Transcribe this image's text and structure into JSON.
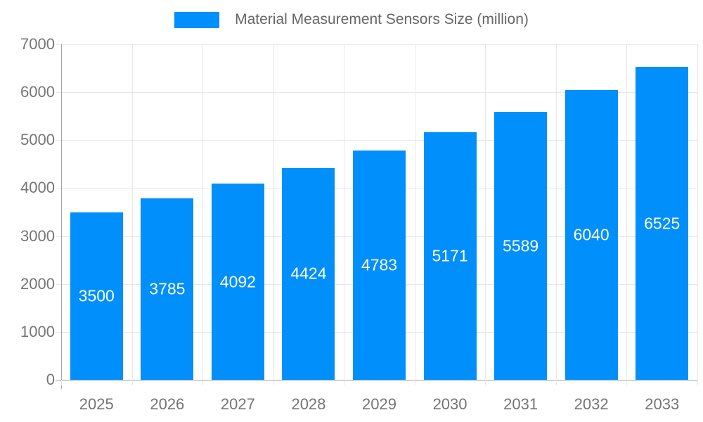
{
  "chart_data": {
    "type": "bar",
    "title": "Material Measurement Sensors Size (million)",
    "legend": {
      "label": "Material Measurement Sensors Size (million)",
      "position": "top"
    },
    "categories": [
      "2025",
      "2026",
      "2027",
      "2028",
      "2029",
      "2030",
      "2031",
      "2032",
      "2033"
    ],
    "values": [
      3500,
      3785,
      4092,
      4424,
      4783,
      5171,
      5589,
      6040,
      6525
    ],
    "xlabel": "",
    "ylabel": "",
    "ylim": [
      0,
      7000
    ],
    "yticks": [
      0,
      1000,
      2000,
      3000,
      4000,
      5000,
      6000,
      7000
    ],
    "grid": true,
    "colors": {
      "bar": "#008FFB",
      "value_label": "#ffffff",
      "tick_label": "#757575",
      "legend_text": "#666666",
      "gridline": "#e7e7e7",
      "axis_line": "#a6a6a6"
    }
  }
}
